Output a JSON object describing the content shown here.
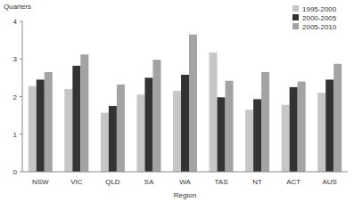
{
  "chart_data": {
    "type": "bar",
    "y_label": "Quarters",
    "x_label": "Region",
    "categories": [
      "NSW",
      "VIC",
      "QLD",
      "SA",
      "WA",
      "TAS",
      "NT",
      "ACT",
      "AUS"
    ],
    "series": [
      {
        "name": "1995-2000",
        "color": "#c6c6c6",
        "values": [
          2.28,
          2.2,
          1.57,
          2.05,
          2.15,
          3.17,
          1.65,
          1.78,
          2.1
        ]
      },
      {
        "name": "2000-2005",
        "color": "#333333",
        "values": [
          2.45,
          2.82,
          1.75,
          2.5,
          2.58,
          1.98,
          1.93,
          2.25,
          2.45
        ]
      },
      {
        "name": "2005-2010",
        "color": "#a3a3a3",
        "values": [
          2.65,
          3.12,
          2.32,
          2.98,
          3.65,
          2.42,
          2.65,
          2.4,
          2.87
        ]
      }
    ],
    "ylim": [
      0,
      4
    ],
    "yticks": [
      0,
      1,
      2,
      3,
      4
    ],
    "legend": "upper right",
    "grid": false
  }
}
